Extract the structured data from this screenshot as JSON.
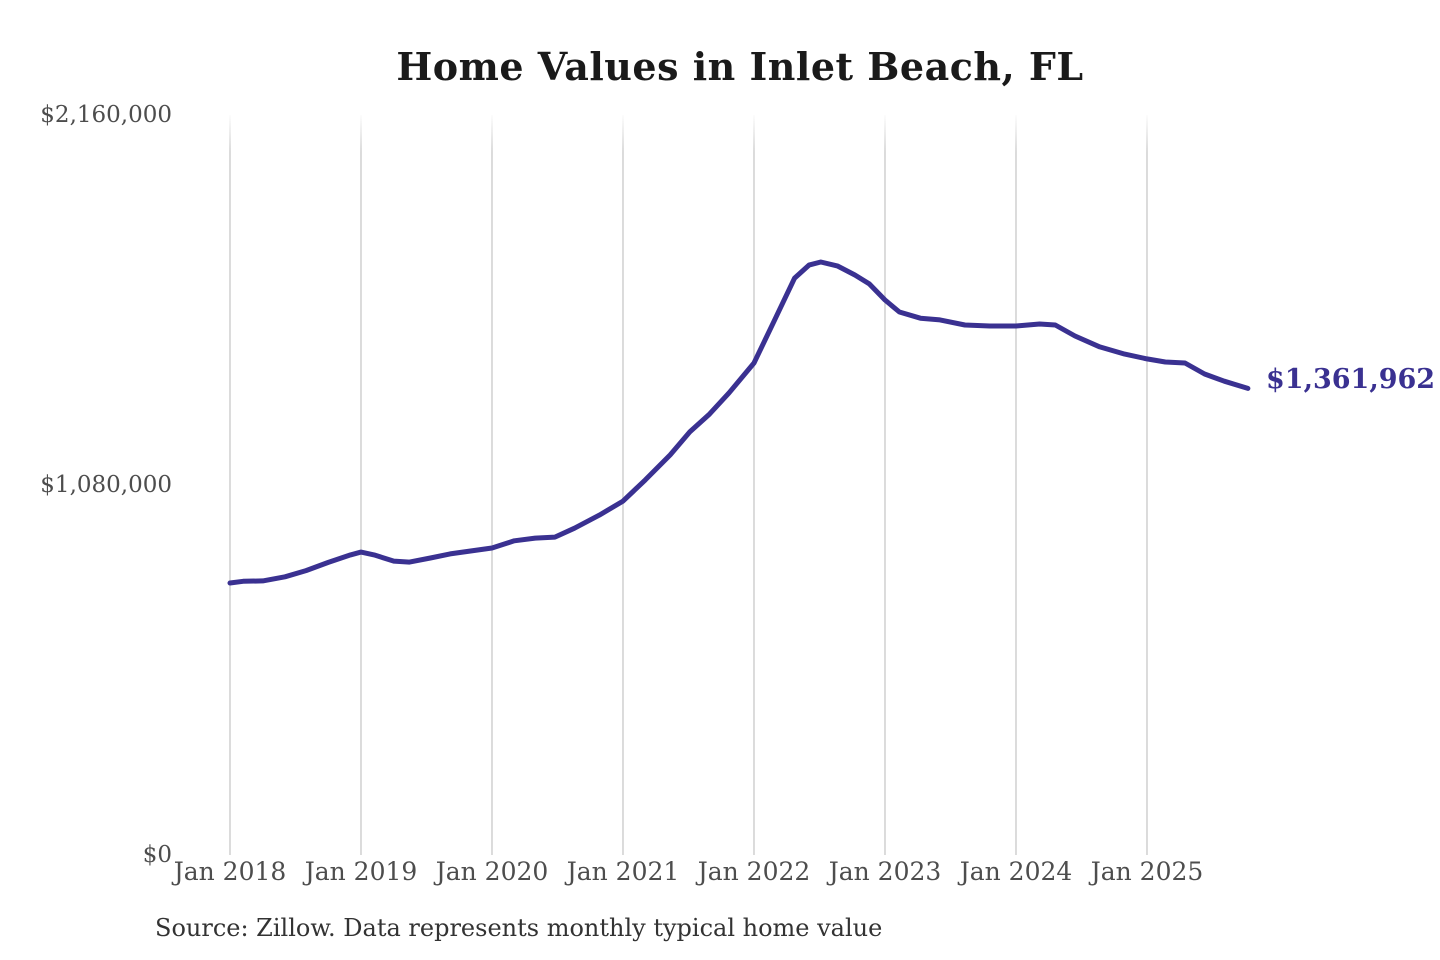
{
  "title": "Home Values in Inlet Beach, FL",
  "source_note": "Source: Zillow. Data represents monthly typical home value",
  "colors": {
    "line": "#3a3191",
    "end_label": "#3a3191",
    "grid": "#cccccc",
    "tick_text": "#4d4d4d",
    "title_text": "#1a1a1a",
    "source_text": "#333333",
    "background": "#ffffff"
  },
  "chart_data": {
    "type": "line",
    "title": "Home Values in Inlet Beach, FL",
    "series_name": "Monthly typical home value",
    "unit": "USD",
    "legend": "none",
    "grid": "vertical-only",
    "xlim": [
      2018,
      2026
    ],
    "ylim": [
      0,
      2160000
    ],
    "x_ticks": [
      "Jan 2018",
      "Jan 2019",
      "Jan 2020",
      "Jan 2021",
      "Jan 2022",
      "Jan 2023",
      "Jan 2024",
      "Jan 2025"
    ],
    "x_tick_years": [
      2018,
      2019,
      2020,
      2021,
      2022,
      2023,
      2024,
      2025
    ],
    "y_ticks": [
      {
        "label": "$0",
        "value": 0
      },
      {
        "label": "$1,080,000",
        "value": 1080000
      },
      {
        "label": "$2,160,000",
        "value": 2160000
      }
    ],
    "last_value": 1361962,
    "last_value_label": "$1,361,962",
    "points": [
      [
        2018.0,
        794000
      ],
      [
        2018.1,
        799000
      ],
      [
        2018.25,
        800000
      ],
      [
        2018.42,
        812000
      ],
      [
        2018.58,
        830000
      ],
      [
        2018.75,
        854000
      ],
      [
        2018.92,
        876000
      ],
      [
        2019.0,
        884000
      ],
      [
        2019.1,
        876000
      ],
      [
        2019.25,
        858000
      ],
      [
        2019.37,
        855000
      ],
      [
        2019.53,
        867000
      ],
      [
        2019.68,
        879000
      ],
      [
        2019.83,
        887000
      ],
      [
        2020.0,
        896000
      ],
      [
        2020.17,
        917000
      ],
      [
        2020.33,
        925000
      ],
      [
        2020.48,
        928000
      ],
      [
        2020.63,
        954000
      ],
      [
        2020.82,
        992000
      ],
      [
        2021.0,
        1033000
      ],
      [
        2021.17,
        1095000
      ],
      [
        2021.36,
        1168000
      ],
      [
        2021.51,
        1235000
      ],
      [
        2021.66,
        1287000
      ],
      [
        2021.81,
        1349000
      ],
      [
        2022.0,
        1436000
      ],
      [
        2022.15,
        1556000
      ],
      [
        2022.31,
        1684000
      ],
      [
        2022.42,
        1722000
      ],
      [
        2022.51,
        1731000
      ],
      [
        2022.64,
        1719000
      ],
      [
        2022.77,
        1693000
      ],
      [
        2022.88,
        1667000
      ],
      [
        2023.0,
        1620000
      ],
      [
        2023.11,
        1585000
      ],
      [
        2023.27,
        1567000
      ],
      [
        2023.42,
        1562000
      ],
      [
        2023.61,
        1547000
      ],
      [
        2023.8,
        1544000
      ],
      [
        2024.0,
        1544000
      ],
      [
        2024.18,
        1550000
      ],
      [
        2024.3,
        1547000
      ],
      [
        2024.45,
        1515000
      ],
      [
        2024.64,
        1483000
      ],
      [
        2024.83,
        1462000
      ],
      [
        2025.0,
        1448000
      ],
      [
        2025.14,
        1439000
      ],
      [
        2025.29,
        1436000
      ],
      [
        2025.44,
        1404000
      ],
      [
        2025.59,
        1383000
      ],
      [
        2025.77,
        1361962
      ]
    ]
  }
}
